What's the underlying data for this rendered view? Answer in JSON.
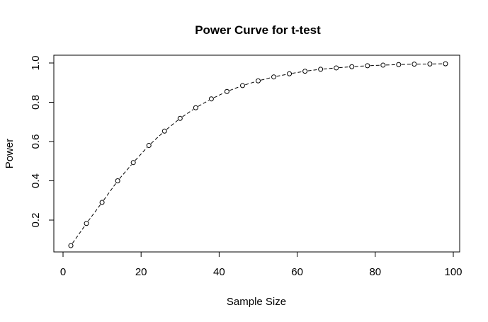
{
  "chart_data": {
    "type": "line",
    "title": "Power Curve for t-test",
    "xlabel": "Sample Size",
    "ylabel": "Power",
    "xlim": [
      0,
      100
    ],
    "ylim": [
      0.2,
      1.0
    ],
    "x_ticks": [
      0,
      20,
      40,
      60,
      80,
      100
    ],
    "y_ticks": [
      0.2,
      0.4,
      0.6,
      0.8,
      1.0
    ],
    "x_tick_labels": [
      "0",
      "20",
      "40",
      "60",
      "80",
      "100"
    ],
    "y_tick_labels": [
      "0.2",
      "0.4",
      "0.6",
      "0.8",
      "1.0"
    ],
    "grid": false,
    "legend": "none",
    "line_style": "dashed with open circle markers",
    "series": [
      {
        "x": [
          2,
          6,
          10,
          14,
          18,
          22,
          26,
          30,
          34,
          38,
          42,
          46,
          50,
          54,
          58,
          62,
          66,
          70,
          74,
          78,
          82,
          86,
          90,
          94,
          98
        ],
        "y": [
          0.07,
          0.183,
          0.29,
          0.4,
          0.493,
          0.58,
          0.653,
          0.718,
          0.772,
          0.817,
          0.855,
          0.885,
          0.909,
          0.929,
          0.945,
          0.958,
          0.968,
          0.975,
          0.981,
          0.986,
          0.989,
          0.992,
          0.994,
          0.995,
          0.996
        ]
      }
    ]
  }
}
